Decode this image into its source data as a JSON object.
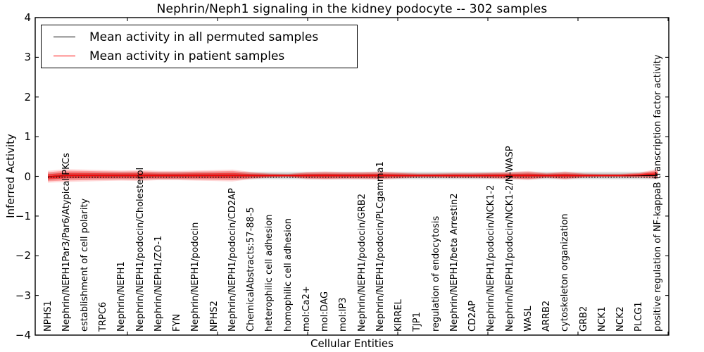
{
  "figure": {
    "title": "Nephrin/Neph1 signaling in the kidney podocyte -- 302 samples",
    "xlabel": "Cellular Entities",
    "ylabel": "Inferred Activity",
    "legend": [
      {
        "label": "Mean activity in all permuted samples",
        "color": "#000000"
      },
      {
        "label": "Mean activity in patient samples",
        "color": "#ff0000"
      }
    ]
  },
  "chart_data": {
    "type": "line",
    "title": "Nephrin/Neph1 signaling in the kidney podocyte -- 302 samples",
    "xlabel": "Cellular Entities",
    "ylabel": "Inferred Activity",
    "ylim": [
      -4,
      4
    ],
    "ytick_labels": [
      "4",
      "3",
      "2",
      "1",
      "0",
      "−1",
      "−2",
      "−3",
      "−4"
    ],
    "ytick_values": [
      4,
      3,
      2,
      1,
      0,
      -1,
      -2,
      -3,
      -4
    ],
    "grid": false,
    "legend_position": "upper left",
    "label_rotation_deg": 90,
    "categories": [
      "NPHS1",
      "Nephrin/NEPH1Par3/Par6/Atypical PKCs",
      "establishment of cell polarity",
      "TRPC6",
      "Nephrin/NEPH1",
      "Nephrin/NEPH1/podocin/Cholesterol",
      "Nephrin/NEPH1/ZO-1",
      "FYN",
      "Nephrin/NEPH1/podocin",
      "NPHS2",
      "Nephrin/NEPH1/podocin/CD2AP",
      "ChemicalAbstracts:57-88-5",
      "heterophilic cell adhesion",
      "homophilic cell adhesion",
      "mol:Ca2+",
      "mol:DAG",
      "mol:IP3",
      "Nephrin/NEPH1/podocin/GRB2",
      "Nephrin/NEPH1/podocin/PLCgamma1",
      "KIRREL",
      "TJP1",
      "regulation of endocytosis",
      "Nephrin/NEPH1/beta Arrestin2",
      "CD2AP",
      "Nephrin/NEPH1/podocin/NCK1-2",
      "Nephrin/NEPH1/podocin/NCK1-2/N-WASP",
      "WASL",
      "ARRB2",
      "cytoskeleton organization",
      "GRB2",
      "NCK1",
      "NCK2",
      "PLCG1",
      "positive regulation of NF-kappaB transcription factor activity"
    ],
    "series": [
      {
        "name": "Mean activity in all permuted samples",
        "color": "#000000",
        "values": [
          -0.01,
          0.02,
          0.02,
          0.02,
          0.02,
          0.02,
          0.02,
          0.02,
          0.02,
          0.02,
          0.02,
          0.02,
          0.02,
          0.02,
          0.02,
          0.02,
          0.02,
          0.02,
          0.02,
          0.02,
          0.02,
          0.02,
          0.02,
          0.02,
          0.02,
          0.02,
          0.02,
          0.02,
          0.02,
          0.02,
          0.02,
          0.02,
          0.02,
          0.02
        ]
      },
      {
        "name": "Mean activity in patient samples",
        "color": "#ff0000",
        "values": [
          -0.01,
          0.02,
          0.02,
          0.02,
          0.02,
          0.02,
          0.02,
          0.02,
          0.02,
          0.02,
          0.02,
          0.02,
          0.02,
          0.02,
          0.02,
          0.02,
          0.02,
          0.02,
          0.02,
          0.02,
          0.02,
          0.02,
          0.02,
          0.02,
          0.02,
          0.02,
          0.02,
          0.02,
          0.02,
          0.02,
          0.02,
          0.02,
          0.03,
          0.06
        ]
      }
    ],
    "bands": [
      {
        "series": "Mean activity in all permuted samples",
        "color": "#000000",
        "half_widths": [
          0.075,
          0.075,
          0.075,
          0.075,
          0.075,
          0.075,
          0.075,
          0.075,
          0.075,
          0.075,
          0.075,
          0.075,
          0.075,
          0.075,
          0.075,
          0.075,
          0.075,
          0.075,
          0.075,
          0.075,
          0.075,
          0.075,
          0.075,
          0.075,
          0.075,
          0.075,
          0.075,
          0.075,
          0.075,
          0.075,
          0.075,
          0.075,
          0.075,
          0.075
        ]
      },
      {
        "series": "Mean activity in patient samples",
        "color": "#ff0000",
        "half_widths": [
          0.115,
          0.124,
          0.115,
          0.106,
          0.098,
          0.106,
          0.089,
          0.089,
          0.098,
          0.106,
          0.115,
          0.071,
          0.044,
          0.035,
          0.071,
          0.08,
          0.071,
          0.071,
          0.08,
          0.062,
          0.044,
          0.044,
          0.053,
          0.053,
          0.062,
          0.071,
          0.089,
          0.05,
          0.08,
          0.044,
          0.035,
          0.035,
          0.05,
          0.098
        ]
      }
    ],
    "zero_line": {
      "value": 0,
      "style": "dotted",
      "color": "#000000"
    }
  }
}
